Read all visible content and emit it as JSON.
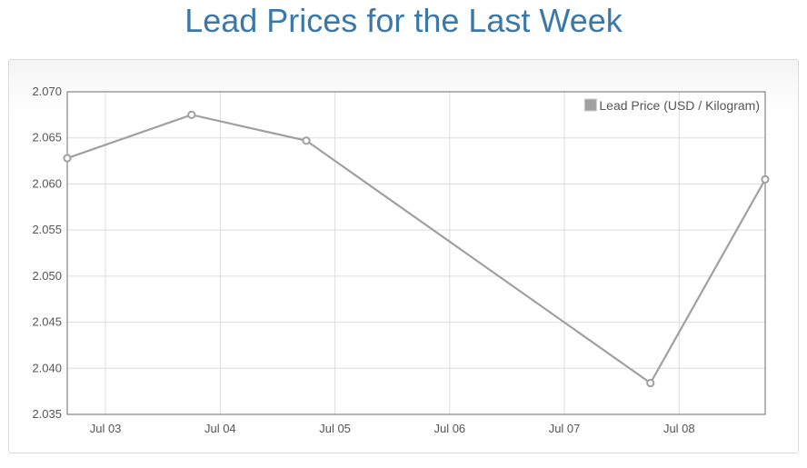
{
  "title": "Lead Prices for the Last Week",
  "chart_data": {
    "type": "line",
    "title": "Lead Prices for the Last Week",
    "x": [
      "2024-07-02T16:00",
      "2024-07-03T18:00",
      "2024-07-04T18:00",
      "2024-07-07T18:00",
      "2024-07-08T18:00"
    ],
    "x_ticks": [
      "Jul 03",
      "Jul 04",
      "Jul 05",
      "Jul 06",
      "Jul 07",
      "Jul 08"
    ],
    "x_tick_dates": [
      "2024-07-03",
      "2024-07-04",
      "2024-07-05",
      "2024-07-06",
      "2024-07-07",
      "2024-07-08"
    ],
    "xlim": [
      "2024-07-02T16:00",
      "2024-07-08T18:00"
    ],
    "series": [
      {
        "name": "Lead Price (USD / Kilogram)",
        "values": [
          2.0628,
          2.0675,
          2.0647,
          2.0384,
          2.0605
        ],
        "color": "#a0a0a0"
      }
    ],
    "ylim": [
      2.035,
      2.07
    ],
    "y_ticks": [
      "2.035",
      "2.040",
      "2.045",
      "2.050",
      "2.055",
      "2.060",
      "2.065",
      "2.070"
    ],
    "xlabel": "",
    "ylabel": "",
    "grid": true,
    "legend_position": "top-right"
  }
}
